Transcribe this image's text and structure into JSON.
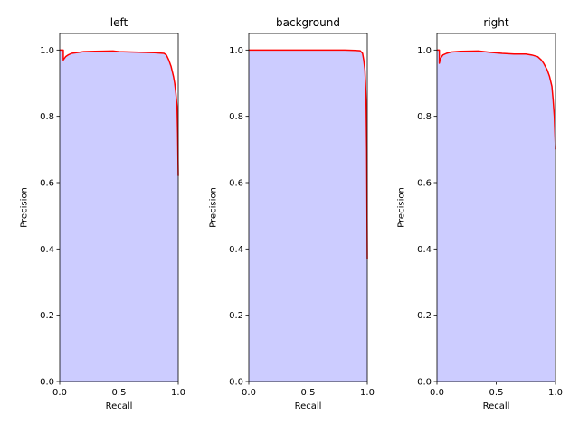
{
  "chart_data": [
    {
      "type": "area",
      "title": "left",
      "xlabel": "Recall",
      "ylabel": "Precision",
      "xlim": [
        0,
        1
      ],
      "ylim": [
        0,
        1.05
      ],
      "xticks": [
        "0.0",
        "0.5",
        "1.0"
      ],
      "yticks": [
        "0.0",
        "0.2",
        "0.4",
        "0.6",
        "0.8",
        "1.0"
      ],
      "line_color": "#ff0000",
      "fill_color": "#ccccff",
      "x": [
        0,
        0.03,
        0.03,
        0.04,
        0.05,
        0.07,
        0.1,
        0.2,
        0.3,
        0.45,
        0.5,
        0.6,
        0.7,
        0.8,
        0.88,
        0.9,
        0.92,
        0.94,
        0.96,
        0.97,
        0.98,
        0.99,
        0.995,
        1.0
      ],
      "y": [
        1.0,
        1.0,
        0.97,
        0.975,
        0.98,
        0.985,
        0.99,
        0.995,
        0.996,
        0.997,
        0.995,
        0.994,
        0.993,
        0.992,
        0.99,
        0.985,
        0.97,
        0.95,
        0.92,
        0.9,
        0.87,
        0.83,
        0.75,
        0.62
      ]
    },
    {
      "type": "area",
      "title": "background",
      "xlabel": "Recall",
      "ylabel": "Precision",
      "xlim": [
        0,
        1
      ],
      "ylim": [
        0,
        1.05
      ],
      "xticks": [
        "0.0",
        "0.5",
        "1.0"
      ],
      "yticks": [
        "0.0",
        "0.2",
        "0.4",
        "0.6",
        "0.8",
        "1.0"
      ],
      "line_color": "#ff0000",
      "fill_color": "#ccccff",
      "x": [
        0,
        0.2,
        0.4,
        0.6,
        0.8,
        0.9,
        0.94,
        0.96,
        0.97,
        0.98,
        0.985,
        0.99,
        0.995,
        1.0
      ],
      "y": [
        1.0,
        1.0,
        1.0,
        1.0,
        1.0,
        0.999,
        0.998,
        0.99,
        0.97,
        0.94,
        0.9,
        0.85,
        0.7,
        0.37
      ]
    },
    {
      "type": "area",
      "title": "right",
      "xlabel": "Recall",
      "ylabel": "Precision",
      "xlim": [
        0,
        1
      ],
      "ylim": [
        0,
        1.05
      ],
      "xticks": [
        "0.0",
        "0.5",
        "1.0"
      ],
      "yticks": [
        "0.0",
        "0.2",
        "0.4",
        "0.6",
        "0.8",
        "1.0"
      ],
      "line_color": "#ff0000",
      "fill_color": "#ccccff",
      "x": [
        0,
        0.02,
        0.02,
        0.03,
        0.05,
        0.08,
        0.12,
        0.2,
        0.35,
        0.45,
        0.55,
        0.65,
        0.75,
        0.8,
        0.85,
        0.88,
        0.9,
        0.93,
        0.95,
        0.97,
        0.98,
        0.99,
        1.0
      ],
      "y": [
        1.0,
        1.0,
        0.96,
        0.975,
        0.985,
        0.99,
        0.994,
        0.996,
        0.997,
        0.993,
        0.99,
        0.988,
        0.988,
        0.985,
        0.98,
        0.97,
        0.96,
        0.94,
        0.92,
        0.89,
        0.85,
        0.8,
        0.7
      ]
    }
  ]
}
